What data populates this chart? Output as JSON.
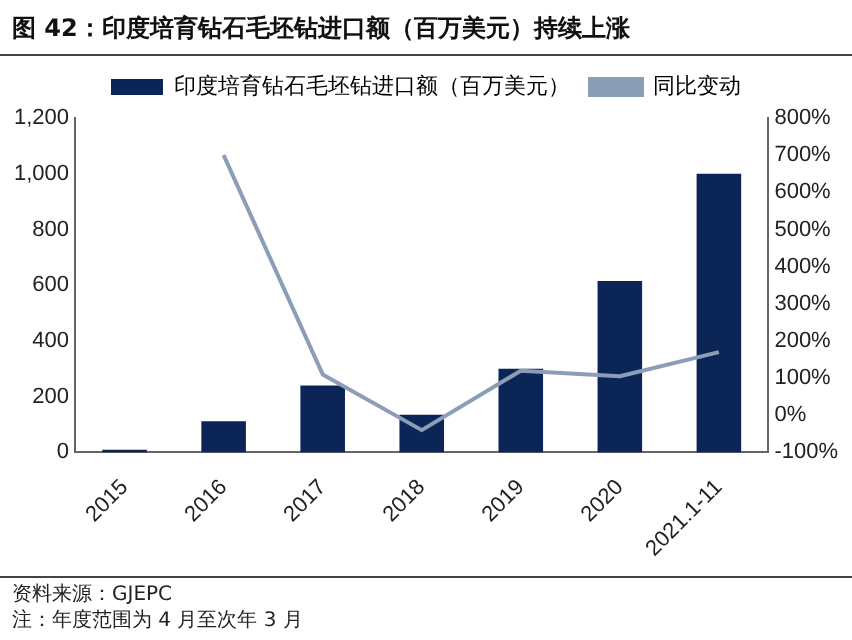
{
  "chart_data": {
    "type": "bar",
    "title": "图 42：印度培育钻石毛坯钻进口额（百万美元）持续上涨",
    "categories": [
      "2015",
      "2016",
      "2017",
      "2018",
      "2019",
      "2020",
      "2021.1-11"
    ],
    "series": [
      {
        "name": "印度培育钻石毛坯钻进口额（百万美元）",
        "color": "#0b2656",
        "values": [
          10,
          112,
          240,
          135,
          300,
          615,
          1000
        ]
      },
      {
        "name": "同比变动",
        "type": "line",
        "axis": "y2",
        "color": "#8c9db8",
        "values": [
          null,
          700,
          110,
          -40,
          120,
          105,
          170
        ]
      }
    ],
    "ylim": [
      0,
      1200
    ],
    "yticks": [
      0,
      200,
      400,
      600,
      800,
      {
        "value": 1000,
        "label": "1,000"
      },
      {
        "value": 1200,
        "label": "1,200"
      }
    ],
    "y2lim": [
      -100,
      800
    ],
    "y2ticks": [
      {
        "value": -100,
        "label": "-100%"
      },
      {
        "value": 0,
        "label": "0%"
      },
      {
        "value": 100,
        "label": "100%"
      },
      {
        "value": 200,
        "label": "200%"
      },
      {
        "value": 300,
        "label": "300%"
      },
      {
        "value": 400,
        "label": "400%"
      },
      {
        "value": 500,
        "label": "500%"
      },
      {
        "value": 600,
        "label": "600%"
      },
      {
        "value": 700,
        "label": "700%"
      },
      {
        "value": 800,
        "label": "800%"
      }
    ],
    "legend": "top",
    "grid": false,
    "marker": "none",
    "line_style": "solid",
    "annotations": [
      "资料来源：GJEPC",
      "注：年度范围为 4 月至次年 3 月"
    ]
  }
}
